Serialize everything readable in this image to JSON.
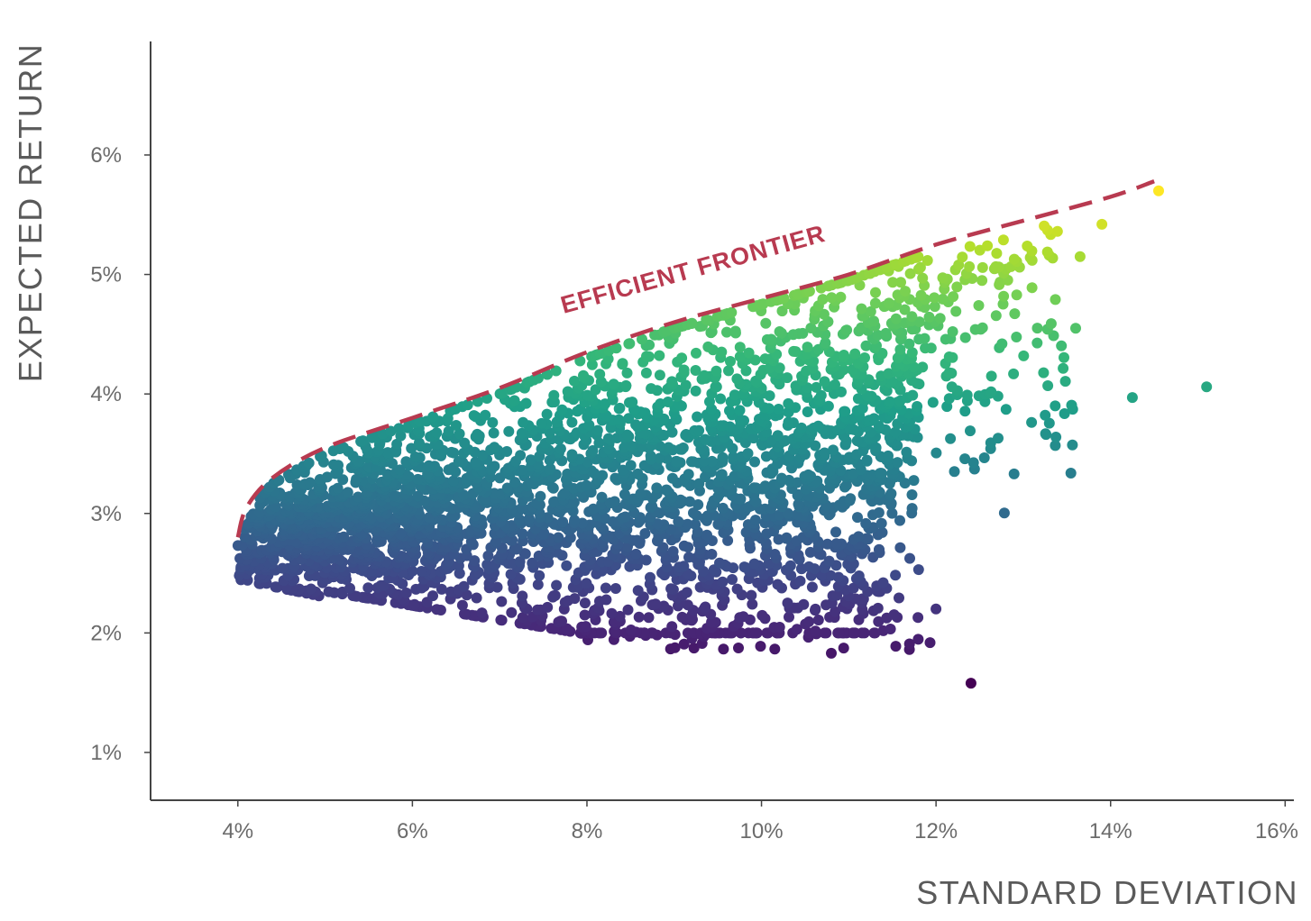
{
  "chart_data": {
    "type": "scatter",
    "xlabel": "STANDARD DEVIATION",
    "ylabel": "EXPECTED RETURN",
    "xlim": [
      3,
      16.1
    ],
    "ylim": [
      0.6,
      6.95
    ],
    "xticks": [
      4,
      6,
      8,
      10,
      12,
      14,
      16
    ],
    "xtick_labels": [
      "4%",
      "6%",
      "8%",
      "10%",
      "12%",
      "14%",
      "16%"
    ],
    "yticks": [
      1,
      2,
      3,
      4,
      5,
      6
    ],
    "ytick_labels": [
      "1%",
      "2%",
      "3%",
      "4%",
      "5%",
      "6%"
    ],
    "grid": false,
    "colormap": "viridis (color mapped to expected return)",
    "frontier": {
      "label": "EFFICIENT FRONTIER",
      "color": "#b83a50",
      "style": "dashed",
      "points": [
        [
          4.0,
          2.8
        ],
        [
          4.1,
          3.05
        ],
        [
          4.4,
          3.3
        ],
        [
          5.0,
          3.55
        ],
        [
          6.0,
          3.8
        ],
        [
          7.0,
          4.05
        ],
        [
          8.0,
          4.35
        ],
        [
          9.0,
          4.6
        ],
        [
          10.0,
          4.8
        ],
        [
          11.0,
          5.0
        ],
        [
          12.0,
          5.25
        ],
        [
          13.0,
          5.45
        ],
        [
          14.0,
          5.65
        ],
        [
          14.5,
          5.78
        ]
      ]
    },
    "notable_points": [
      {
        "x": 14.55,
        "y": 5.7
      },
      {
        "x": 13.9,
        "y": 5.42
      },
      {
        "x": 13.65,
        "y": 5.15
      },
      {
        "x": 15.1,
        "y": 4.06
      },
      {
        "x": 14.25,
        "y": 3.97
      },
      {
        "x": 12.4,
        "y": 1.58
      },
      {
        "x": 10.8,
        "y": 1.83
      },
      {
        "x": 12.0,
        "y": 2.2
      },
      {
        "x": 11.8,
        "y": 2.53
      },
      {
        "x": 13.6,
        "y": 4.55
      }
    ],
    "cloud": {
      "approximate_point_count": 3200,
      "min_x": 4.0,
      "max_x": 15.1,
      "min_y": 1.58,
      "max_y": 5.7
    }
  }
}
